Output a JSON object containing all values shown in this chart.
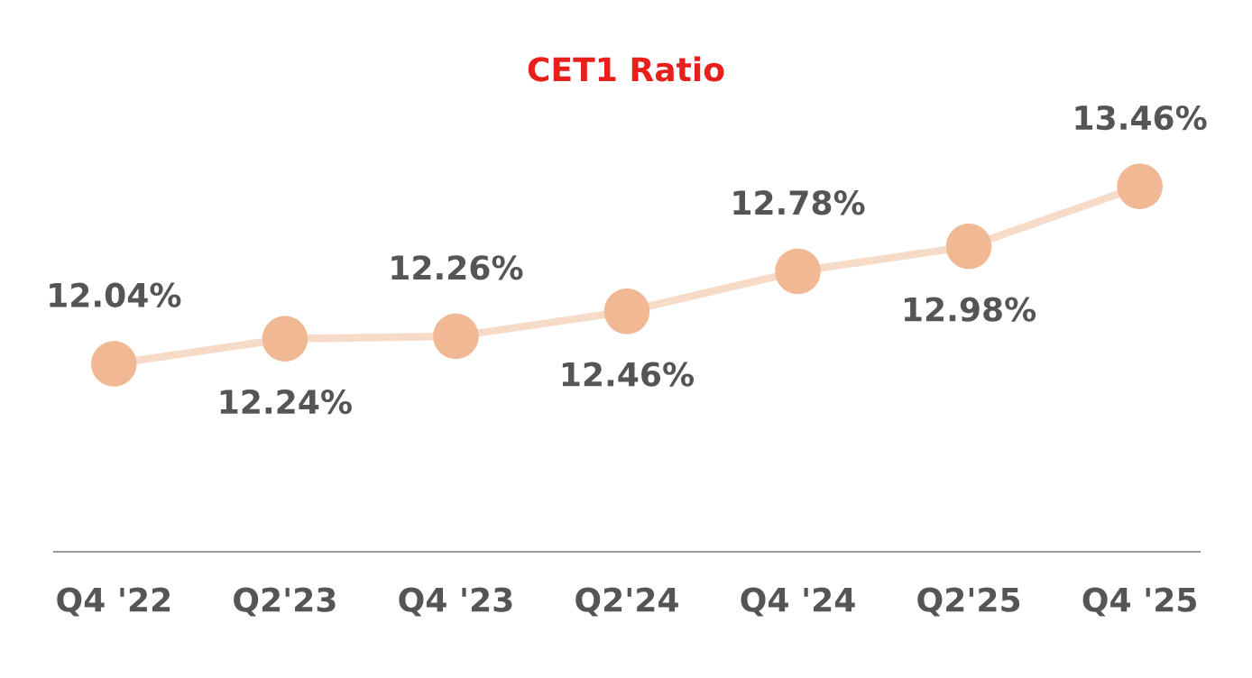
{
  "chart_data": {
    "type": "line",
    "title": "CET1 Ratio",
    "categories": [
      "Q4 '22",
      "Q2'23",
      "Q4 '23",
      "Q2'24",
      "Q4 '24",
      "Q2'25",
      "Q4 '25"
    ],
    "series": [
      {
        "color": "#f0b893",
        "values": [
          12.04,
          12.24,
          12.26,
          12.46,
          12.78,
          12.98,
          13.46
        ],
        "value_labels": [
          "12.04%",
          "12.24%",
          "12.26%",
          "12.46%",
          "12.78%",
          "12.98%",
          "13.46%"
        ]
      }
    ],
    "marker": "circle",
    "line_style": "solid",
    "grid": false,
    "legend": false
  }
}
